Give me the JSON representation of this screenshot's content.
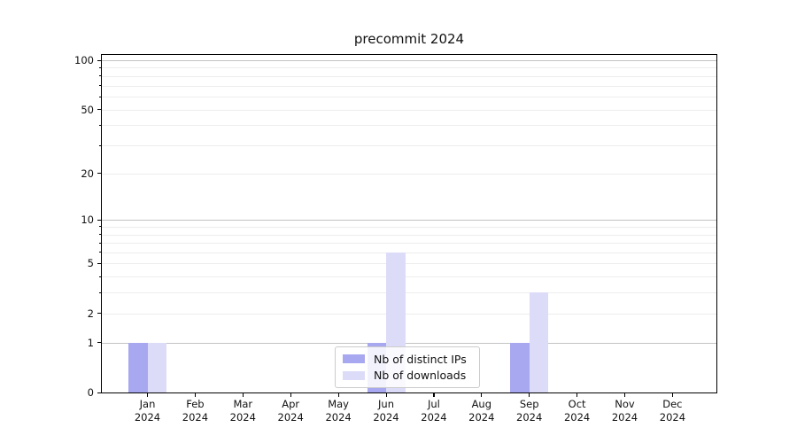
{
  "chart_data": {
    "type": "bar",
    "title": "precommit 2024",
    "categories": [
      "Jan",
      "Feb",
      "Mar",
      "Apr",
      "May",
      "Jun",
      "Jul",
      "Aug",
      "Sep",
      "Oct",
      "Nov",
      "Dec"
    ],
    "category_year": "2024",
    "series": [
      {
        "name": "Nb of distinct IPs",
        "color": "#a8a8f0",
        "values": [
          1,
          0,
          0,
          0,
          0,
          1,
          0,
          0,
          1,
          0,
          0,
          0
        ]
      },
      {
        "name": "Nb of downloads",
        "color": "#dcdcf8",
        "values": [
          1,
          0,
          0,
          0,
          0,
          6,
          0,
          0,
          3,
          0,
          0,
          0
        ]
      }
    ],
    "yscale": "log1p",
    "ylim": [
      0,
      111
    ],
    "yticks": [
      0,
      1,
      2,
      5,
      10,
      20,
      50,
      100
    ],
    "grid_major": [
      1,
      10,
      100
    ],
    "grid_minor": [
      2,
      3,
      4,
      5,
      6,
      7,
      8,
      9,
      20,
      30,
      40,
      50,
      60,
      70,
      80,
      90
    ],
    "legend": {
      "position": "lower-center"
    },
    "colors": {
      "grid_major": "#c3c3c3",
      "grid_minor": "#ededed",
      "spine": "#000000",
      "background": "#ffffff"
    }
  }
}
